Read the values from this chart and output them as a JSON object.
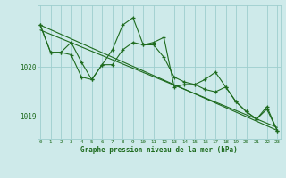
{
  "xlabel": "Graphe pression niveau de la mer (hPa)",
  "bg_color": "#ceeaea",
  "grid_color": "#9ecece",
  "line_color": "#1e6b1e",
  "hours": [
    0,
    1,
    2,
    3,
    4,
    5,
    6,
    7,
    8,
    9,
    10,
    11,
    12,
    13,
    14,
    15,
    16,
    17,
    18,
    19,
    20,
    21,
    22,
    23
  ],
  "series1": [
    1020.85,
    1020.3,
    1020.3,
    1020.25,
    1019.8,
    1019.75,
    1020.05,
    1020.05,
    1020.35,
    1020.5,
    1020.45,
    1020.45,
    1020.2,
    1019.8,
    1019.7,
    1019.65,
    1019.55,
    1019.5,
    1019.6,
    1019.3,
    1019.1,
    1018.95,
    1019.15,
    1018.72
  ],
  "series2": [
    1020.85,
    1020.3,
    1020.3,
    1020.5,
    1020.1,
    1019.75,
    1020.05,
    1020.35,
    1020.85,
    1021.0,
    1020.45,
    1020.5,
    1020.6,
    1019.6,
    1019.65,
    1019.65,
    1019.75,
    1019.9,
    1019.6,
    1019.3,
    1019.1,
    1018.95,
    1019.2,
    1018.72
  ],
  "trend1_x": [
    0,
    23
  ],
  "trend1_y": [
    1020.85,
    1018.72
  ],
  "trend2_x": [
    0,
    23
  ],
  "trend2_y": [
    1020.75,
    1018.78
  ],
  "ylim": [
    1018.55,
    1021.25
  ],
  "yticks": [
    1019,
    1020
  ],
  "xlim": [
    -0.3,
    23.3
  ]
}
